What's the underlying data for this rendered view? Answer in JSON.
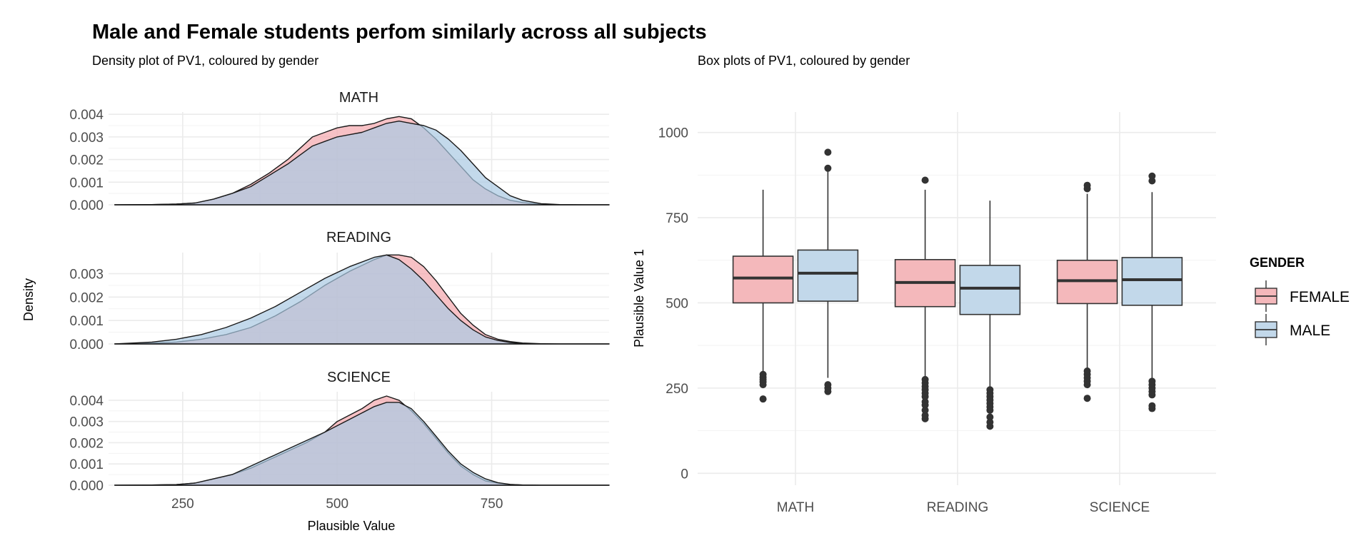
{
  "title": "Male and Female students perfom similarly across all subjects",
  "chart_data": [
    {
      "type": "area",
      "subtitle": "Density plot of PV1, coloured by gender",
      "xlabel": "Plausible Value",
      "ylabel": "Density",
      "xlim": [
        130,
        940
      ],
      "xticks": [
        250,
        500,
        750
      ],
      "grid": true,
      "colors": {
        "FEMALE": "#f4a7ac",
        "MALE": "#a9c9e2",
        "overlap": "#b6a3b2"
      },
      "series_names": [
        "FEMALE",
        "MALE"
      ],
      "panels": [
        {
          "label": "MATH",
          "ylim": [
            0,
            0.0041
          ],
          "yticks": [
            "0.000",
            "0.001",
            "0.002",
            "0.003",
            "0.004"
          ],
          "ytick_values": [
            0,
            0.001,
            0.002,
            0.003,
            0.004
          ],
          "series": [
            {
              "name": "FEMALE",
              "x": [
                140,
                200,
                240,
                270,
                300,
                330,
                360,
                390,
                420,
                440,
                460,
                480,
                500,
                520,
                540,
                560,
                580,
                600,
                620,
                640,
                660,
                680,
                700,
                720,
                740,
                760,
                780,
                800,
                830,
                860,
                900,
                940
              ],
              "values": [
                0,
                1e-05,
                3e-05,
                8e-05,
                0.00025,
                0.0005,
                0.0009,
                0.0014,
                0.002,
                0.0025,
                0.003,
                0.0032,
                0.0034,
                0.0035,
                0.0035,
                0.0036,
                0.0038,
                0.0039,
                0.0038,
                0.0034,
                0.0029,
                0.0023,
                0.0017,
                0.0011,
                0.0007,
                0.0004,
                0.0002,
                0.0001,
                2e-05,
                0,
                0,
                0
              ]
            },
            {
              "name": "MALE",
              "x": [
                140,
                200,
                240,
                270,
                300,
                330,
                360,
                390,
                420,
                440,
                460,
                480,
                500,
                520,
                540,
                560,
                580,
                600,
                620,
                640,
                660,
                680,
                700,
                720,
                740,
                760,
                780,
                800,
                830,
                860,
                900,
                940
              ],
              "values": [
                0,
                1e-05,
                3e-05,
                8e-05,
                0.00025,
                0.0005,
                0.0008,
                0.0013,
                0.0018,
                0.0022,
                0.0026,
                0.0028,
                0.003,
                0.0031,
                0.0032,
                0.0034,
                0.0036,
                0.0037,
                0.0036,
                0.0035,
                0.0033,
                0.0029,
                0.0024,
                0.0018,
                0.0012,
                0.0008,
                0.0004,
                0.0002,
                5e-05,
                1e-05,
                0,
                0
              ]
            }
          ]
        },
        {
          "label": "READING",
          "ylim": [
            0,
            0.0039
          ],
          "yticks": [
            "0.000",
            "0.001",
            "0.002",
            "0.003"
          ],
          "ytick_values": [
            0,
            0.001,
            0.002,
            0.003
          ],
          "series": [
            {
              "name": "FEMALE",
              "x": [
                140,
                200,
                240,
                280,
                320,
                360,
                400,
                440,
                480,
                520,
                560,
                580,
                600,
                620,
                640,
                660,
                680,
                700,
                720,
                740,
                760,
                780,
                800,
                830,
                860,
                900,
                940
              ],
              "values": [
                0,
                3e-05,
                8e-05,
                0.0002,
                0.0004,
                0.0007,
                0.0012,
                0.0018,
                0.0025,
                0.0031,
                0.0036,
                0.0038,
                0.0038,
                0.0037,
                0.0033,
                0.0027,
                0.002,
                0.0013,
                0.0008,
                0.0004,
                0.0002,
                0.0001,
                4e-05,
                1e-05,
                0,
                0,
                0
              ]
            },
            {
              "name": "MALE",
              "x": [
                140,
                200,
                240,
                280,
                320,
                360,
                400,
                440,
                480,
                520,
                560,
                580,
                600,
                620,
                640,
                660,
                680,
                700,
                720,
                740,
                760,
                780,
                800,
                830,
                860,
                900,
                940
              ],
              "values": [
                0,
                8e-05,
                0.0002,
                0.0004,
                0.0007,
                0.0011,
                0.0016,
                0.0022,
                0.0028,
                0.0033,
                0.0037,
                0.0038,
                0.0036,
                0.0032,
                0.0027,
                0.0021,
                0.0015,
                0.001,
                0.0006,
                0.0003,
                0.00015,
                6e-05,
                2e-05,
                0,
                0,
                0,
                0
              ]
            }
          ]
        },
        {
          "label": "SCIENCE",
          "ylim": [
            0,
            0.0044
          ],
          "yticks": [
            "0.000",
            "0.001",
            "0.002",
            "0.003",
            "0.004"
          ],
          "ytick_values": [
            0,
            0.001,
            0.002,
            0.003,
            0.004
          ],
          "series": [
            {
              "name": "FEMALE",
              "x": [
                140,
                200,
                240,
                270,
                300,
                330,
                360,
                390,
                420,
                450,
                480,
                500,
                520,
                540,
                560,
                580,
                600,
                620,
                640,
                660,
                680,
                700,
                720,
                740,
                760,
                780,
                800,
                830,
                860,
                900,
                940
              ],
              "values": [
                0,
                1e-05,
                3e-05,
                0.0001,
                0.0003,
                0.0005,
                0.0008,
                0.0012,
                0.0016,
                0.002,
                0.0025,
                0.003,
                0.0033,
                0.0036,
                0.004,
                0.0042,
                0.004,
                0.0035,
                0.0029,
                0.0022,
                0.0015,
                0.0009,
                0.0005,
                0.0002,
                0.0001,
                3e-05,
                1e-05,
                0,
                0,
                0,
                0
              ]
            },
            {
              "name": "MALE",
              "x": [
                140,
                200,
                240,
                270,
                300,
                330,
                360,
                390,
                420,
                450,
                480,
                500,
                520,
                540,
                560,
                580,
                600,
                620,
                640,
                660,
                680,
                700,
                720,
                740,
                760,
                780,
                800,
                830,
                860,
                900,
                940
              ],
              "values": [
                0,
                1e-05,
                3e-05,
                0.0001,
                0.0003,
                0.0005,
                0.0009,
                0.0013,
                0.0017,
                0.0021,
                0.0025,
                0.0028,
                0.0031,
                0.0034,
                0.0037,
                0.0039,
                0.0039,
                0.0036,
                0.003,
                0.0023,
                0.0016,
                0.001,
                0.0006,
                0.0003,
                0.00012,
                4e-05,
                1e-05,
                0,
                0,
                0,
                0
              ]
            }
          ]
        }
      ]
    },
    {
      "type": "box",
      "subtitle": "Box plots of PV1, coloured by gender",
      "xlabel": "",
      "ylabel": "Plausible Value 1",
      "ylim": [
        -35,
        1060
      ],
      "yticks": [
        0,
        250,
        500,
        750,
        1000
      ],
      "categories": [
        "MATH",
        "READING",
        "SCIENCE"
      ],
      "grid": true,
      "legend": {
        "title": "GENDER",
        "position": "right",
        "items": [
          "FEMALE",
          "MALE"
        ]
      },
      "colors": {
        "FEMALE": "#f4b8bb",
        "MALE": "#c2d8ea"
      },
      "series": [
        {
          "name": "FEMALE",
          "boxes": [
            {
              "category": "MATH",
              "q1": 500,
              "median": 573,
              "q3": 637,
              "whisker_low": 295,
              "whisker_high": 832,
              "outliers": [
                218,
                260,
                268,
                275,
                282,
                290
              ]
            },
            {
              "category": "READING",
              "q1": 489,
              "median": 560,
              "q3": 627,
              "whisker_low": 285,
              "whisker_high": 832,
              "outliers": [
                160,
                170,
                185,
                200,
                210,
                225,
                235,
                245,
                255,
                265,
                275,
                860
              ]
            },
            {
              "category": "SCIENCE",
              "q1": 498,
              "median": 565,
              "q3": 625,
              "whisker_low": 305,
              "whisker_high": 820,
              "outliers": [
                220,
                260,
                270,
                280,
                290,
                300,
                835,
                845
              ]
            }
          ]
        },
        {
          "name": "MALE",
          "boxes": [
            {
              "category": "MATH",
              "q1": 505,
              "median": 587,
              "q3": 655,
              "whisker_low": 280,
              "whisker_high": 893,
              "outliers": [
                240,
                250,
                260,
                895,
                942
              ]
            },
            {
              "category": "READING",
              "q1": 466,
              "median": 543,
              "q3": 610,
              "whisker_low": 245,
              "whisker_high": 800,
              "outliers": [
                138,
                150,
                165,
                185,
                195,
                205,
                215,
                225,
                235,
                245
              ]
            },
            {
              "category": "SCIENCE",
              "q1": 493,
              "median": 568,
              "q3": 633,
              "whisker_low": 275,
              "whisker_high": 825,
              "outliers": [
                190,
                198,
                230,
                240,
                250,
                260,
                270,
                858,
                872
              ]
            }
          ]
        }
      ]
    }
  ]
}
